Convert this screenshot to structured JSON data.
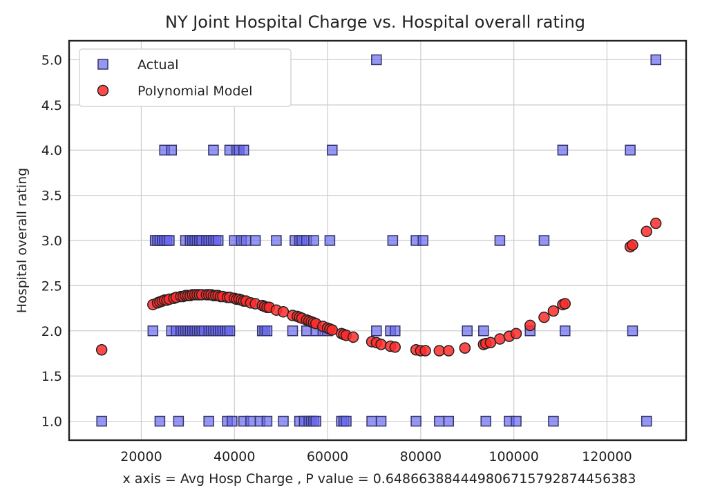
{
  "chart_data": {
    "type": "scatter",
    "title": "NY Joint Hospital Charge vs. Hospital overall rating",
    "xlabel": "x axis = Avg Hosp Charge , P value = 0.6486638844498067157928744563​83",
    "ylabel": "Hospital overall rating",
    "xlim": [
      4500,
      137000
    ],
    "ylim": [
      0.79,
      5.21
    ],
    "xticks": [
      20000,
      40000,
      60000,
      80000,
      100000,
      120000
    ],
    "xtick_labels": [
      "20000",
      "40000",
      "60000",
      "80000",
      "100000",
      "120000"
    ],
    "yticks": [
      1.0,
      1.5,
      2.0,
      2.5,
      3.0,
      3.5,
      4.0,
      4.5,
      5.0
    ],
    "ytick_labels": [
      "1.0",
      "1.5",
      "2.0",
      "2.5",
      "3.0",
      "3.5",
      "4.0",
      "4.5",
      "5.0"
    ],
    "grid": true,
    "legend_position": "top-left",
    "series": [
      {
        "name": "Actual",
        "marker": "square",
        "color": "#6a6af0",
        "edge_color": "#333366",
        "points": [
          [
            11500,
            1.0
          ],
          [
            24000,
            1.0
          ],
          [
            28000,
            1.0
          ],
          [
            34500,
            1.0
          ],
          [
            38500,
            1.0
          ],
          [
            39500,
            1.0
          ],
          [
            42000,
            1.0
          ],
          [
            43500,
            1.0
          ],
          [
            45500,
            1.0
          ],
          [
            47000,
            1.0
          ],
          [
            50500,
            1.0
          ],
          [
            54000,
            1.0
          ],
          [
            55000,
            1.0
          ],
          [
            56000,
            1.0
          ],
          [
            56500,
            1.0
          ],
          [
            57000,
            1.0
          ],
          [
            57500,
            1.0
          ],
          [
            63000,
            1.0
          ],
          [
            63500,
            1.0
          ],
          [
            64000,
            1.0
          ],
          [
            69500,
            1.0
          ],
          [
            71500,
            1.0
          ],
          [
            79000,
            1.0
          ],
          [
            84000,
            1.0
          ],
          [
            86000,
            1.0
          ],
          [
            94000,
            1.0
          ],
          [
            99000,
            1.0
          ],
          [
            100500,
            1.0
          ],
          [
            108500,
            1.0
          ],
          [
            128500,
            1.0
          ],
          [
            22500,
            2.0
          ],
          [
            26500,
            2.0
          ],
          [
            27500,
            2.0
          ],
          [
            28500,
            2.0
          ],
          [
            29000,
            2.0
          ],
          [
            29500,
            2.0
          ],
          [
            30000,
            2.0
          ],
          [
            30500,
            2.0
          ],
          [
            31000,
            2.0
          ],
          [
            31500,
            2.0
          ],
          [
            32000,
            2.0
          ],
          [
            32500,
            2.0
          ],
          [
            33000,
            2.0
          ],
          [
            33500,
            2.0
          ],
          [
            34500,
            2.0
          ],
          [
            35000,
            2.0
          ],
          [
            35500,
            2.0
          ],
          [
            36000,
            2.0
          ],
          [
            36500,
            2.0
          ],
          [
            37000,
            2.0
          ],
          [
            37500,
            2.0
          ],
          [
            38000,
            2.0
          ],
          [
            38500,
            2.0
          ],
          [
            39000,
            2.0
          ],
          [
            46000,
            2.0
          ],
          [
            46500,
            2.0
          ],
          [
            47000,
            2.0
          ],
          [
            52500,
            2.0
          ],
          [
            55500,
            2.0
          ],
          [
            57500,
            2.0
          ],
          [
            59000,
            2.0
          ],
          [
            60000,
            2.0
          ],
          [
            70500,
            2.0
          ],
          [
            73500,
            2.0
          ],
          [
            74500,
            2.0
          ],
          [
            90000,
            2.0
          ],
          [
            93500,
            2.0
          ],
          [
            103500,
            2.0
          ],
          [
            111000,
            2.0
          ],
          [
            125500,
            2.0
          ],
          [
            23000,
            3.0
          ],
          [
            23500,
            3.0
          ],
          [
            24000,
            3.0
          ],
          [
            24500,
            3.0
          ],
          [
            25000,
            3.0
          ],
          [
            25500,
            3.0
          ],
          [
            26000,
            3.0
          ],
          [
            29500,
            3.0
          ],
          [
            30500,
            3.0
          ],
          [
            31000,
            3.0
          ],
          [
            31500,
            3.0
          ],
          [
            32000,
            3.0
          ],
          [
            32500,
            3.0
          ],
          [
            33000,
            3.0
          ],
          [
            34000,
            3.0
          ],
          [
            34500,
            3.0
          ],
          [
            35000,
            3.0
          ],
          [
            35500,
            3.0
          ],
          [
            36000,
            3.0
          ],
          [
            36500,
            3.0
          ],
          [
            40000,
            3.0
          ],
          [
            41500,
            3.0
          ],
          [
            42500,
            3.0
          ],
          [
            44500,
            3.0
          ],
          [
            49000,
            3.0
          ],
          [
            53000,
            3.0
          ],
          [
            54000,
            3.0
          ],
          [
            54500,
            3.0
          ],
          [
            55500,
            3.0
          ],
          [
            57000,
            3.0
          ],
          [
            60500,
            3.0
          ],
          [
            74000,
            3.0
          ],
          [
            79000,
            3.0
          ],
          [
            80500,
            3.0
          ],
          [
            97000,
            3.0
          ],
          [
            106500,
            3.0
          ],
          [
            25000,
            4.0
          ],
          [
            26500,
            4.0
          ],
          [
            35500,
            4.0
          ],
          [
            39000,
            4.0
          ],
          [
            40500,
            4.0
          ],
          [
            41000,
            4.0
          ],
          [
            42000,
            4.0
          ],
          [
            61000,
            4.0
          ],
          [
            110500,
            4.0
          ],
          [
            125000,
            4.0
          ],
          [
            70500,
            5.0
          ],
          [
            130500,
            5.0
          ]
        ]
      },
      {
        "name": "Polynomial Model",
        "marker": "circle",
        "color": "#ff2a2a",
        "edge_color": "#222222",
        "points": [
          [
            11500,
            1.79
          ],
          [
            22500,
            2.29
          ],
          [
            23500,
            2.31
          ],
          [
            24000,
            2.32
          ],
          [
            24500,
            2.33
          ],
          [
            25000,
            2.34
          ],
          [
            25500,
            2.34
          ],
          [
            26000,
            2.35
          ],
          [
            27000,
            2.36
          ],
          [
            27500,
            2.37
          ],
          [
            28500,
            2.38
          ],
          [
            29000,
            2.38
          ],
          [
            29500,
            2.39
          ],
          [
            30000,
            2.39
          ],
          [
            30500,
            2.39
          ],
          [
            31000,
            2.4
          ],
          [
            31500,
            2.4
          ],
          [
            32000,
            2.4
          ],
          [
            32500,
            2.4
          ],
          [
            33000,
            2.4
          ],
          [
            34000,
            2.4
          ],
          [
            34500,
            2.4
          ],
          [
            35000,
            2.4
          ],
          [
            35500,
            2.39
          ],
          [
            36000,
            2.39
          ],
          [
            36500,
            2.39
          ],
          [
            37000,
            2.38
          ],
          [
            37500,
            2.38
          ],
          [
            38500,
            2.37
          ],
          [
            39000,
            2.37
          ],
          [
            40000,
            2.36
          ],
          [
            40500,
            2.35
          ],
          [
            41000,
            2.35
          ],
          [
            41500,
            2.34
          ],
          [
            42000,
            2.33
          ],
          [
            42500,
            2.33
          ],
          [
            43500,
            2.31
          ],
          [
            44500,
            2.3
          ],
          [
            46000,
            2.28
          ],
          [
            46500,
            2.27
          ],
          [
            47000,
            2.26
          ],
          [
            47500,
            2.26
          ],
          [
            49000,
            2.23
          ],
          [
            50500,
            2.21
          ],
          [
            52500,
            2.17
          ],
          [
            53500,
            2.16
          ],
          [
            54000,
            2.15
          ],
          [
            54500,
            2.14
          ],
          [
            55500,
            2.12
          ],
          [
            56000,
            2.11
          ],
          [
            56500,
            2.1
          ],
          [
            57000,
            2.09
          ],
          [
            57500,
            2.08
          ],
          [
            59000,
            2.05
          ],
          [
            60000,
            2.03
          ],
          [
            60500,
            2.02
          ],
          [
            61000,
            2.01
          ],
          [
            63000,
            1.97
          ],
          [
            63500,
            1.96
          ],
          [
            64000,
            1.95
          ],
          [
            65500,
            1.93
          ],
          [
            69500,
            1.88
          ],
          [
            70500,
            1.87
          ],
          [
            71500,
            1.85
          ],
          [
            73500,
            1.83
          ],
          [
            74500,
            1.82
          ],
          [
            79000,
            1.79
          ],
          [
            80000,
            1.78
          ],
          [
            81000,
            1.78
          ],
          [
            84000,
            1.78
          ],
          [
            86000,
            1.78
          ],
          [
            89500,
            1.81
          ],
          [
            93500,
            1.85
          ],
          [
            94000,
            1.86
          ],
          [
            95000,
            1.87
          ],
          [
            97000,
            1.91
          ],
          [
            99000,
            1.94
          ],
          [
            100500,
            1.97
          ],
          [
            103500,
            2.06
          ],
          [
            106500,
            2.15
          ],
          [
            108500,
            2.22
          ],
          [
            110500,
            2.29
          ],
          [
            111000,
            2.3
          ],
          [
            125000,
            2.93
          ],
          [
            125500,
            2.95
          ],
          [
            128500,
            3.1
          ],
          [
            130500,
            3.19
          ]
        ]
      }
    ]
  }
}
